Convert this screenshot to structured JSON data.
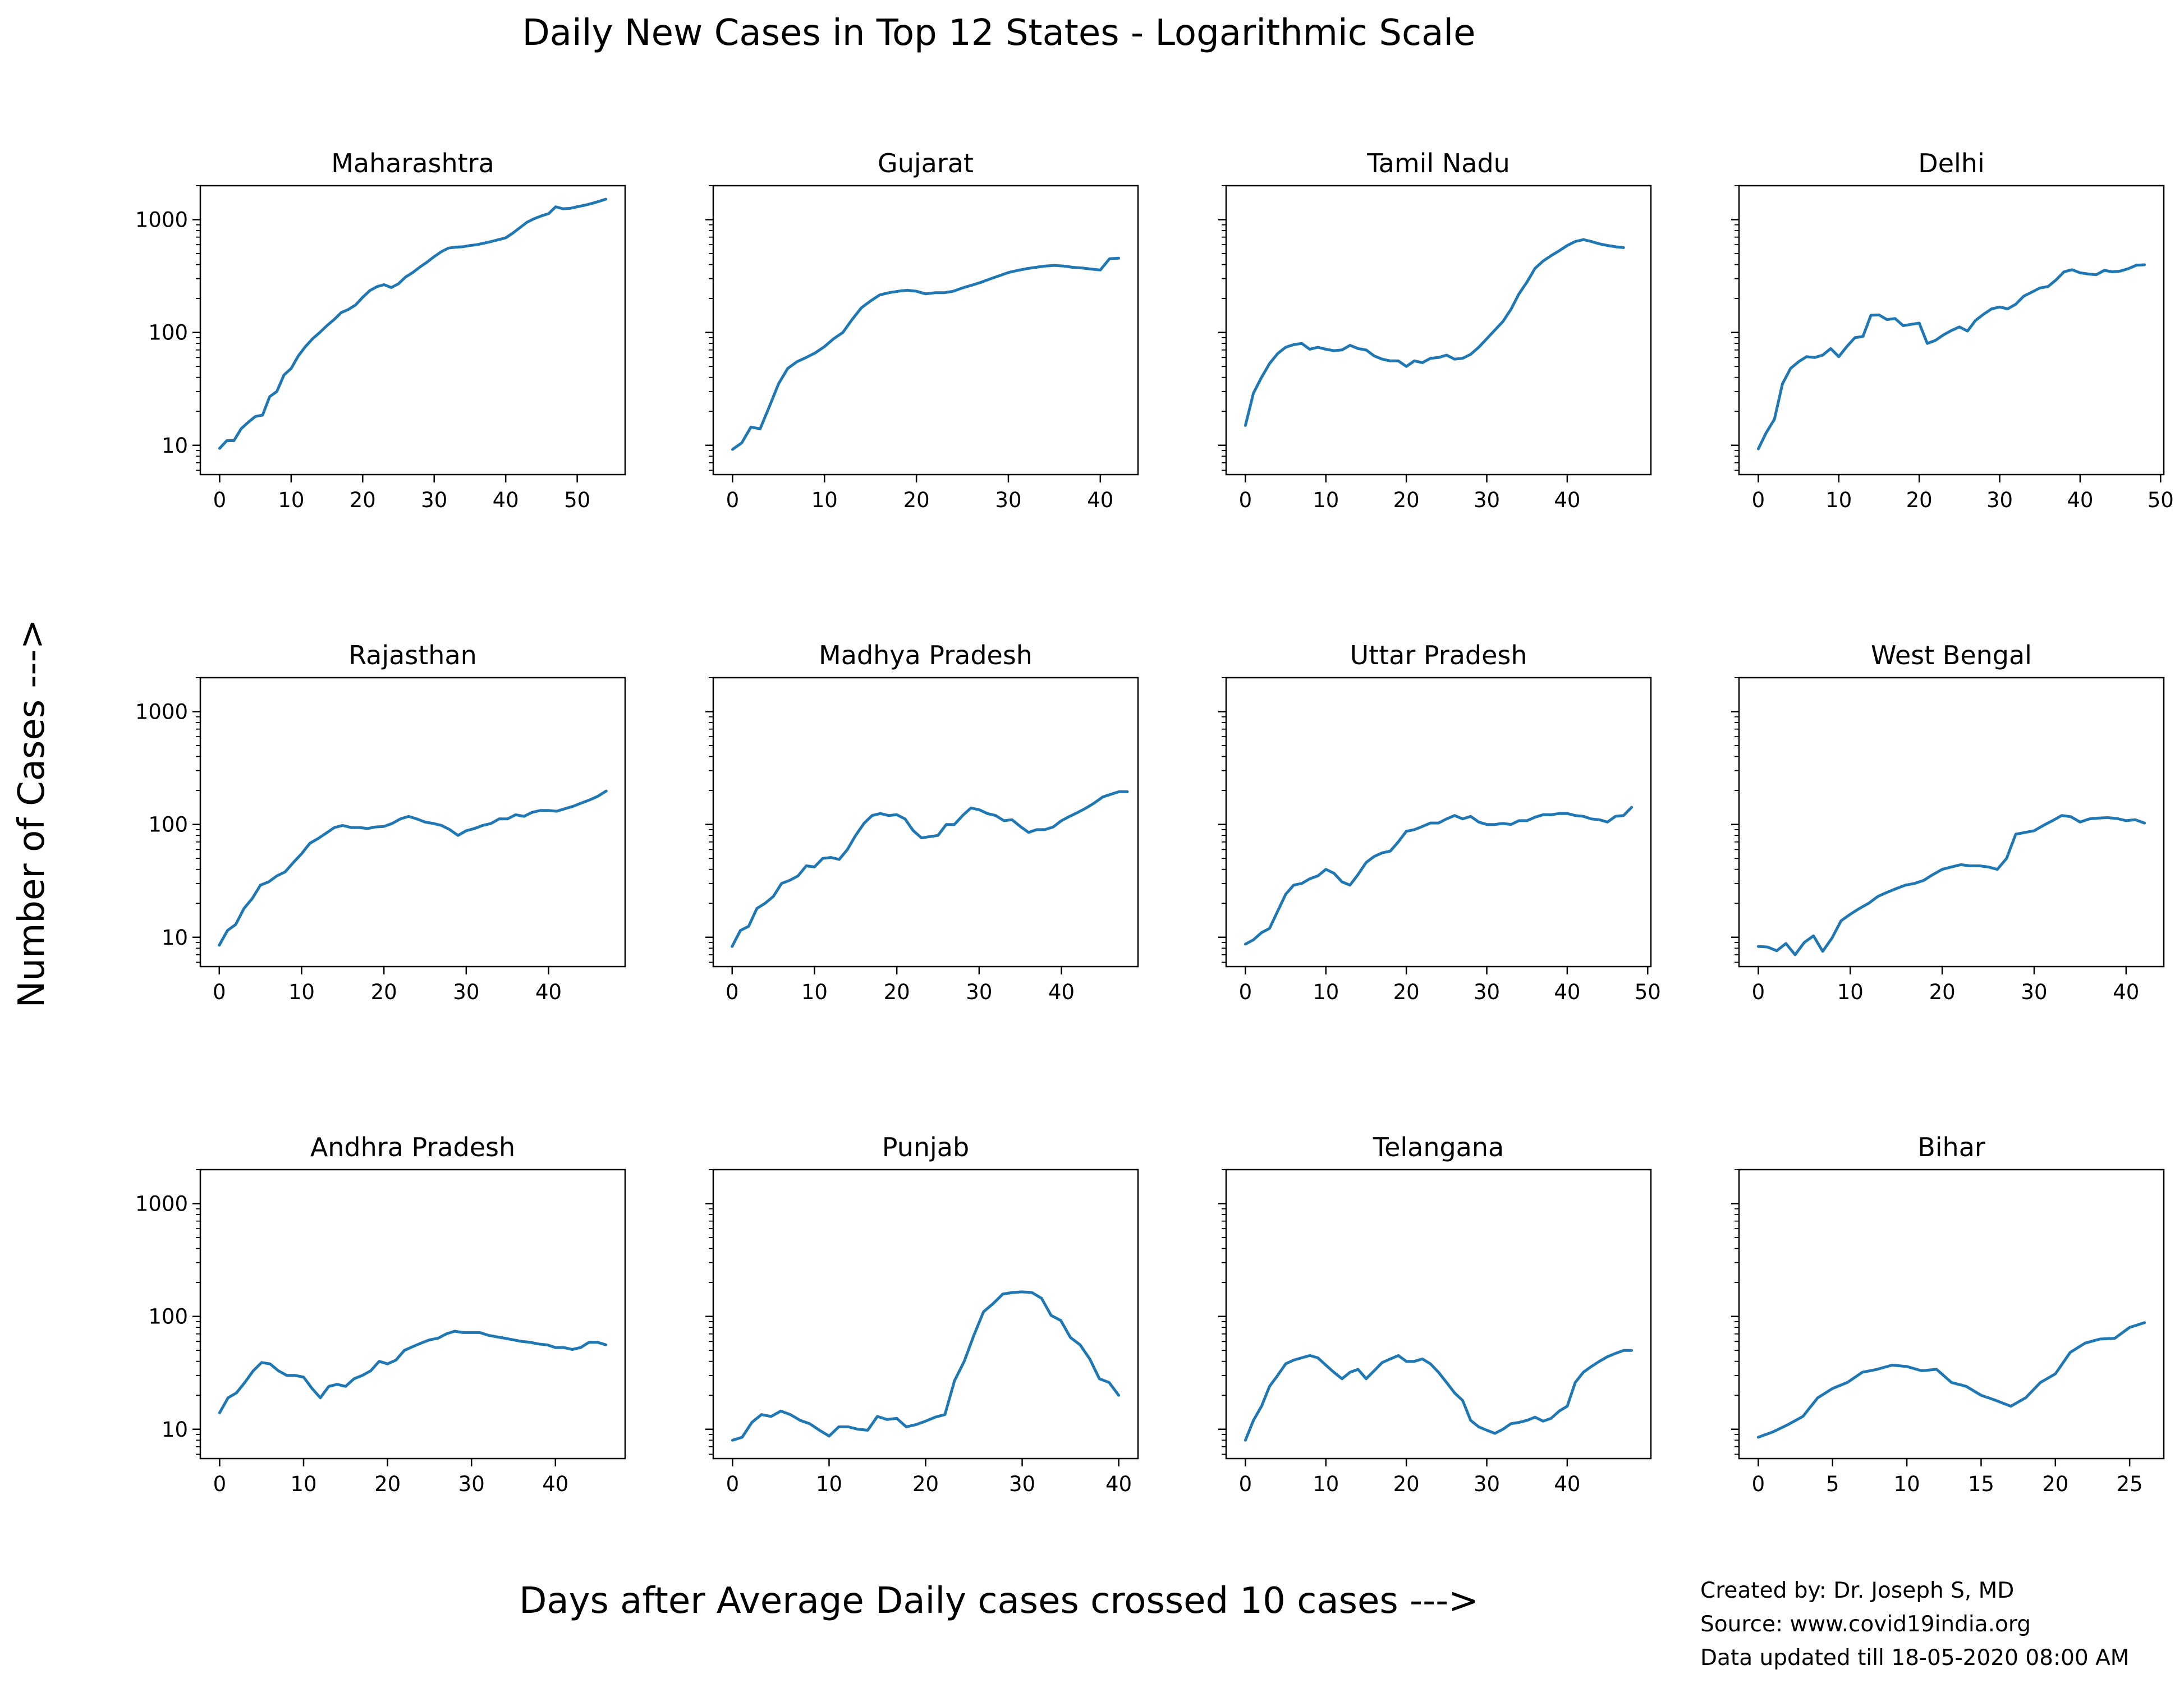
{
  "figure": {
    "title": "Daily New Cases in Top 12 States - Logarithmic Scale",
    "xlabel": "Days after Average Daily cases crossed 10 cases --->",
    "ylabel": "Number of Cases --->",
    "credits": [
      "Created by: Dr. Joseph S, MD",
      "Source: www.covid19india.org",
      "Data updated till 18-05-2020 08:00 AM"
    ],
    "line_color": "#1f77b4"
  },
  "chart_data": [
    {
      "type": "line",
      "title": "Maharashtra",
      "y_scale": "log",
      "ylim": [
        5.5,
        2000
      ],
      "yticks": [
        10,
        100,
        1000
      ],
      "xlim": [
        -2.7,
        56.7
      ],
      "xticks": [
        0,
        10,
        20,
        30,
        40,
        50
      ],
      "series": [
        {
          "values": [
            9.4,
            11,
            11,
            14,
            16,
            18,
            18.5,
            27,
            30,
            42,
            48,
            62,
            75,
            88,
            100,
            115,
            130,
            150,
            160,
            175,
            205,
            235,
            255,
            265,
            250,
            270,
            310,
            340,
            380,
            420,
            470,
            520,
            560,
            570,
            575,
            590,
            600,
            620,
            640,
            665,
            690,
            760,
            850,
            950,
            1020,
            1080,
            1130,
            1300,
            1250,
            1260,
            1300,
            1340,
            1390,
            1450,
            1520
          ]
        }
      ]
    },
    {
      "type": "line",
      "title": "Gujarat",
      "y_scale": "log",
      "ylim": [
        5.5,
        2000
      ],
      "yticks": [
        10,
        100,
        1000
      ],
      "xlim": [
        -2.1,
        44.1
      ],
      "xticks": [
        0,
        10,
        20,
        30,
        40
      ],
      "series": [
        {
          "values": [
            9.2,
            10.5,
            14.5,
            14,
            22,
            35,
            48,
            55,
            60,
            66,
            75,
            88,
            100,
            130,
            165,
            190,
            215,
            225,
            232,
            237,
            232,
            220,
            225,
            225,
            232,
            248,
            262,
            278,
            298,
            318,
            340,
            355,
            368,
            378,
            388,
            393,
            388,
            378,
            373,
            365,
            358,
            450,
            455
          ]
        }
      ]
    },
    {
      "type": "line",
      "title": "Tamil Nadu",
      "y_scale": "log",
      "ylim": [
        5.5,
        2000
      ],
      "yticks": [
        10,
        100,
        1000
      ],
      "xlim": [
        -2.4,
        50.4
      ],
      "xticks": [
        0,
        10,
        20,
        30,
        40
      ],
      "series": [
        {
          "values": [
            15,
            29,
            40,
            53,
            65,
            74,
            78,
            80,
            71,
            74,
            71,
            69,
            70,
            77,
            72,
            70,
            62,
            58,
            56,
            56,
            50,
            56,
            54,
            59,
            60,
            63,
            58,
            59,
            64,
            74,
            88,
            105,
            125,
            160,
            220,
            280,
            370,
            430,
            480,
            530,
            590,
            640,
            665,
            640,
            610,
            590,
            575,
            565
          ]
        }
      ]
    },
    {
      "type": "line",
      "title": "Delhi",
      "y_scale": "log",
      "ylim": [
        5.5,
        2000
      ],
      "yticks": [
        10,
        100,
        1000
      ],
      "xlim": [
        -2.4,
        50.4
      ],
      "xticks": [
        0,
        10,
        20,
        30,
        40,
        50
      ],
      "series": [
        {
          "values": [
            9.3,
            13,
            17,
            35,
            48,
            55,
            61,
            60,
            63,
            72,
            61,
            75,
            90,
            92,
            142,
            143,
            130,
            133,
            115,
            118,
            121,
            80,
            85,
            95,
            104,
            112,
            103,
            128,
            145,
            162,
            168,
            162,
            178,
            210,
            228,
            248,
            255,
            292,
            345,
            360,
            338,
            330,
            325,
            355,
            345,
            350,
            368,
            395,
            398
          ]
        }
      ]
    },
    {
      "type": "line",
      "title": "Rajasthan",
      "y_scale": "log",
      "ylim": [
        5.5,
        2000
      ],
      "yticks": [
        10,
        100,
        1000
      ],
      "xlim": [
        -2.3,
        49.3
      ],
      "xticks": [
        0,
        10,
        20,
        30,
        40
      ],
      "series": [
        {
          "values": [
            8.5,
            11.5,
            13,
            18,
            22,
            29,
            31,
            35,
            38,
            46,
            55,
            68,
            75,
            84,
            94,
            98,
            94,
            94,
            92,
            95,
            96,
            102,
            112,
            118,
            112,
            105,
            102,
            98,
            90,
            80,
            88,
            92,
            98,
            102,
            112,
            112,
            122,
            118,
            128,
            133,
            133,
            131,
            138,
            145,
            155,
            165,
            178,
            198
          ]
        }
      ]
    },
    {
      "type": "line",
      "title": "Madhya Pradesh",
      "y_scale": "log",
      "ylim": [
        5.5,
        2000
      ],
      "yticks": [
        10,
        100,
        1000
      ],
      "xlim": [
        -2.3,
        49.3
      ],
      "xticks": [
        0,
        10,
        20,
        30,
        40
      ],
      "series": [
        {
          "values": [
            8.3,
            11.5,
            12.5,
            18,
            20,
            23,
            30,
            32,
            35,
            43,
            42,
            50,
            51,
            49,
            60,
            80,
            102,
            120,
            125,
            120,
            122,
            112,
            88,
            76,
            78,
            80,
            100,
            100,
            120,
            140,
            135,
            125,
            120,
            108,
            110,
            96,
            85,
            90,
            90,
            95,
            108,
            118,
            128,
            140,
            155,
            175,
            185,
            195,
            195
          ]
        }
      ]
    },
    {
      "type": "line",
      "title": "Uttar Pradesh",
      "y_scale": "log",
      "ylim": [
        5.5,
        2000
      ],
      "yticks": [
        10,
        100,
        1000
      ],
      "xlim": [
        -2.4,
        50.4
      ],
      "xticks": [
        0,
        10,
        20,
        30,
        40,
        50
      ],
      "series": [
        {
          "values": [
            8.7,
            9.5,
            11,
            12,
            17,
            24,
            29,
            30,
            33,
            35,
            40,
            37,
            31,
            29,
            36,
            46,
            52,
            56,
            58,
            70,
            87,
            90,
            96,
            103,
            103,
            112,
            120,
            112,
            118,
            105,
            100,
            100,
            102,
            100,
            108,
            108,
            116,
            122,
            122,
            125,
            125,
            120,
            118,
            112,
            110,
            105,
            118,
            120,
            142
          ]
        }
      ]
    },
    {
      "type": "line",
      "title": "West Bengal",
      "y_scale": "log",
      "ylim": [
        5.5,
        2000
      ],
      "yticks": [
        10,
        100,
        1000
      ],
      "xlim": [
        -2.1,
        44.1
      ],
      "xticks": [
        0,
        10,
        20,
        30,
        40
      ],
      "series": [
        {
          "values": [
            8.3,
            8.2,
            7.6,
            8.8,
            7,
            9,
            10.3,
            7.5,
            9.8,
            14,
            16,
            18,
            20,
            23,
            25,
            27,
            29,
            30,
            32,
            36,
            40,
            42,
            44,
            43,
            43,
            42,
            40,
            50,
            82,
            85,
            88,
            98,
            108,
            120,
            117,
            105,
            112,
            114,
            115,
            113,
            108,
            110,
            103
          ]
        }
      ]
    },
    {
      "type": "line",
      "title": "Andhra Pradesh",
      "y_scale": "log",
      "ylim": [
        5.5,
        2000
      ],
      "yticks": [
        10,
        100,
        1000
      ],
      "xlim": [
        -2.3,
        48.3
      ],
      "xticks": [
        0,
        10,
        20,
        30,
        40
      ],
      "series": [
        {
          "values": [
            14,
            19,
            21,
            26,
            33,
            39,
            38,
            33,
            30,
            30,
            29,
            23,
            19,
            24,
            25,
            24,
            28,
            30,
            33,
            40,
            38,
            41,
            50,
            54,
            58,
            62,
            64,
            70,
            74,
            72,
            72,
            72,
            68,
            66,
            64,
            62,
            60,
            59,
            57,
            56,
            53,
            53,
            51,
            53,
            59,
            59,
            56
          ]
        }
      ]
    },
    {
      "type": "line",
      "title": "Punjab",
      "y_scale": "log",
      "ylim": [
        5.5,
        2000
      ],
      "yticks": [
        10,
        100,
        1000
      ],
      "xlim": [
        -2.0,
        42.0
      ],
      "xticks": [
        0,
        10,
        20,
        30,
        40
      ],
      "series": [
        {
          "values": [
            8,
            8.5,
            11.5,
            13.5,
            13,
            14.5,
            13.5,
            12,
            11.2,
            9.8,
            8.7,
            10.5,
            10.5,
            10,
            9.8,
            13,
            12.2,
            12.5,
            10.5,
            11,
            11.8,
            12.8,
            13.5,
            27,
            40,
            68,
            110,
            130,
            158,
            163,
            165,
            163,
            145,
            102,
            92,
            65,
            56,
            42,
            28,
            26,
            20
          ]
        }
      ]
    },
    {
      "type": "line",
      "title": "Telangana",
      "y_scale": "log",
      "ylim": [
        5.5,
        2000
      ],
      "yticks": [
        10,
        100,
        1000
      ],
      "xlim": [
        -2.4,
        50.4
      ],
      "xticks": [
        0,
        10,
        20,
        30,
        40
      ],
      "series": [
        {
          "values": [
            8,
            12,
            16,
            24,
            30,
            38,
            41,
            43,
            45,
            43,
            37,
            32,
            28,
            32,
            34,
            28,
            33,
            39,
            42,
            45,
            40,
            40,
            42,
            38,
            32,
            26,
            21,
            18,
            12,
            10.5,
            9.8,
            9.2,
            10,
            11.2,
            11.5,
            12,
            12.8,
            11.8,
            12.5,
            14.5,
            16,
            26,
            32,
            36,
            40,
            44,
            47,
            50,
            50
          ]
        }
      ]
    },
    {
      "type": "line",
      "title": "Bihar",
      "y_scale": "log",
      "ylim": [
        5.5,
        2000
      ],
      "yticks": [
        10,
        100,
        1000
      ],
      "xlim": [
        -1.3,
        27.3
      ],
      "xticks": [
        0,
        5,
        10,
        15,
        20,
        25
      ],
      "series": [
        {
          "values": [
            8.5,
            9.5,
            11,
            13,
            19,
            23,
            26,
            32,
            34,
            37,
            36,
            33,
            34,
            26,
            24,
            20,
            18,
            16,
            19,
            26,
            31,
            48,
            58,
            63,
            64,
            80,
            88
          ]
        }
      ]
    }
  ]
}
